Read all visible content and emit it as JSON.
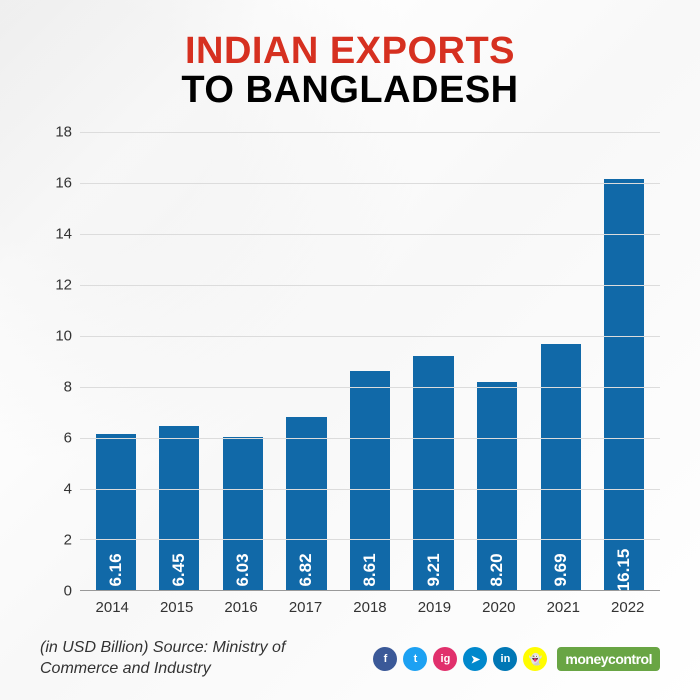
{
  "title": {
    "line1": "INDIAN EXPORTS",
    "line2": "TO BANGLADESH",
    "line1_color": "#d63020",
    "line2_color": "#000000",
    "fontsize": 38,
    "fontweight": 900
  },
  "chart": {
    "type": "bar",
    "categories": [
      "2014",
      "2015",
      "2016",
      "2017",
      "2018",
      "2019",
      "2020",
      "2021",
      "2022"
    ],
    "values": [
      6.16,
      6.45,
      6.03,
      6.82,
      8.61,
      9.21,
      8.2,
      9.69,
      16.15
    ],
    "value_labels": [
      "6.16",
      "6.45",
      "6.03",
      "6.82",
      "8.61",
      "9.21",
      "8.20",
      "9.69",
      "16.15"
    ],
    "bar_color": "#1169a8",
    "ylim": [
      0,
      18
    ],
    "ytick_step": 2,
    "yticks": [
      "0",
      "2",
      "4",
      "6",
      "8",
      "10",
      "12",
      "14",
      "16",
      "18"
    ],
    "grid_color": "#dcdcdc",
    "bar_label_color": "#ffffff",
    "bar_label_fontsize": 17,
    "axis_label_fontsize": 15,
    "bar_width": 0.78
  },
  "footer": {
    "source": "(in USD Billion) Source: Ministry of Commerce and Industry",
    "brand": "moneycontrol",
    "brand_bg": "#69a544",
    "social": [
      {
        "name": "facebook",
        "bg": "#3b5998",
        "glyph": "f"
      },
      {
        "name": "twitter",
        "bg": "#1da1f2",
        "glyph": "t"
      },
      {
        "name": "instagram",
        "bg": "#e1306c",
        "glyph": "ig"
      },
      {
        "name": "telegram",
        "bg": "#0088cc",
        "glyph": "➤"
      },
      {
        "name": "linkedin",
        "bg": "#0077b5",
        "glyph": "in"
      },
      {
        "name": "snapchat",
        "bg": "#fffc00",
        "glyph": "👻"
      }
    ]
  }
}
